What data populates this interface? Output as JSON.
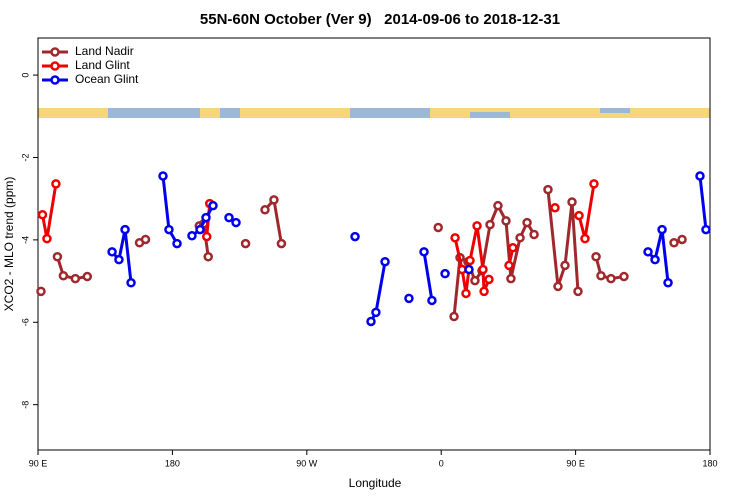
{
  "chart_data": {
    "type": "line",
    "title": "55N-60N October (Ver 9)   2014-09-06 to 2018-12-31",
    "x_label": "Longitude",
    "y_label": "XCO2 - MLO trend (ppm)",
    "xlim": [
      90,
      540
    ],
    "ylim": [
      -9.1,
      0.9
    ],
    "xticks": [
      {
        "value": 90,
        "label": "90 E"
      },
      180,
      {
        "value": 270,
        "label": "90 W"
      },
      {
        "value": 360,
        "label": "0"
      },
      {
        "value": 450,
        "label": "90 E"
      },
      {
        "value": 540,
        "label": "180"
      }
    ],
    "yticks": [
      0,
      -2,
      -4,
      -6,
      -8
    ],
    "legend": "top-left",
    "series": [
      {
        "name": "Land Nadir",
        "color": "#a0282d",
        "x": [
          92,
          null,
          103,
          107,
          115,
          123,
          null,
          158,
          162,
          null,
          198,
          201,
          204,
          null,
          229,
          null,
          242,
          248,
          253,
          null,
          358,
          null,
          368.6,
          372.6,
          377.9,
          382.6,
          387.3,
          392.7,
          398,
          403.4,
          406.7,
          412.8,
          417.5,
          422.2,
          null,
          431.5,
          438.2,
          442.9,
          447.6,
          451.6,
          null,
          463.7,
          467,
          473.7,
          482.4,
          null,
          515.9,
          521.3
        ],
        "values": [
          -5.25,
          null,
          -4.41,
          -4.87,
          -4.94,
          -4.89,
          null,
          -4.07,
          -3.99,
          null,
          -3.66,
          -3.61,
          -4.41,
          null,
          -4.09,
          null,
          -3.27,
          -3.03,
          -4.09,
          null,
          -3.7,
          null,
          -5.86,
          -4.43,
          -4.53,
          -4.99,
          -4.75,
          -3.63,
          -3.17,
          -3.54,
          -4.94,
          -3.95,
          -3.58,
          -3.87,
          null,
          -2.78,
          -5.13,
          -4.62,
          -3.08,
          -5.25,
          null,
          -4.41,
          -4.87,
          -4.94,
          -4.89,
          null,
          -4.07,
          -3.99
        ]
      },
      {
        "name": "Land Glint",
        "color": "#ee0000",
        "x": [
          93,
          96,
          102,
          null,
          203,
          205,
          null,
          369.3,
          374,
          376.6,
          379.3,
          384,
          388,
          388.7,
          392,
          null,
          405.4,
          408,
          null,
          436.2,
          null,
          452.3,
          456.3,
          462.3
        ],
        "values": [
          -3.39,
          -3.97,
          -2.64,
          null,
          -3.92,
          -3.12,
          null,
          -3.95,
          -4.72,
          -5.3,
          -4.5,
          -3.66,
          -4.72,
          -5.25,
          -4.96,
          null,
          -4.62,
          -4.19,
          null,
          -3.22,
          null,
          -3.41,
          -3.97,
          -2.64
        ]
      },
      {
        "name": "Ocean Glint",
        "color": "#0000ee",
        "x": [
          139.6,
          144.2,
          148.3,
          152.3,
          null,
          173.7,
          177.7,
          183.1,
          null,
          193.1,
          198.5,
          202.5,
          207.2,
          null,
          217.9,
          222.6,
          null,
          302.3,
          null,
          313,
          316.3,
          322.4,
          null,
          338.4,
          null,
          348.5,
          353.8,
          null,
          362.6,
          null,
          378.6,
          null,
          498.5,
          503.2,
          507.9,
          511.9,
          null,
          533.3,
          537.3
        ],
        "values": [
          -4.29,
          -4.48,
          -3.75,
          -5.04,
          null,
          -2.45,
          -3.75,
          -4.09,
          null,
          -3.9,
          -3.75,
          -3.46,
          -3.17,
          null,
          -3.46,
          -3.58,
          null,
          -3.92,
          null,
          -5.98,
          -5.76,
          -4.53,
          null,
          -5.42,
          null,
          -4.29,
          -5.47,
          null,
          -4.82,
          null,
          -4.72,
          null,
          -4.29,
          -4.48,
          -3.75,
          -5.04,
          null,
          -2.45,
          -3.75
        ]
      }
    ]
  }
}
